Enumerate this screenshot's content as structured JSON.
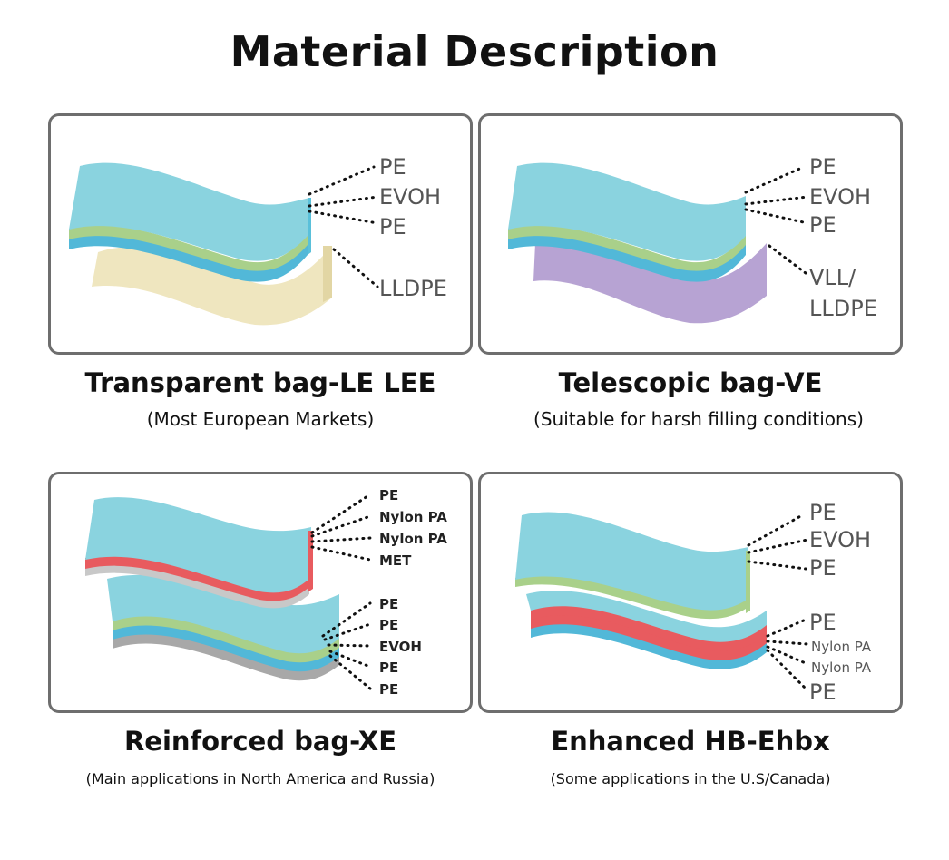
{
  "title": "Material  Description",
  "colors": {
    "cyan": "#8ad3df",
    "cyan_edge": "#52b8d8",
    "green": "#a9d08a",
    "cream": "#efe6bf",
    "purple": "#b7a3d3",
    "red": "#e85b5f",
    "gray": "#bfbfbf",
    "border": "#6e6e6e"
  },
  "panels": [
    {
      "name": "Transparent bag-LE LEE",
      "subtitle": "(Most European Markets)",
      "layers": [
        "PE",
        "EVOH",
        "PE",
        "LLDPE"
      ]
    },
    {
      "name": "Telescopic bag-VE",
      "subtitle": "(Suitable for harsh filling conditions)",
      "layers": [
        "PE",
        "EVOH",
        "PE",
        "VLL/",
        "LLDPE"
      ]
    },
    {
      "name": "Reinforced bag-XE",
      "subtitle": "(Main applications in North America and Russia)",
      "layers_top": [
        "PE",
        "Nylon PA",
        "Nylon PA",
        "MET"
      ],
      "layers_bottom": [
        "PE",
        "PE",
        "EVOH",
        "PE",
        "PE"
      ]
    },
    {
      "name": "Enhanced HB-Ehbx",
      "subtitle": "(Some applications in the U.S/Canada)",
      "layers_top": [
        "PE",
        "EVOH",
        "PE"
      ],
      "layers_bottom": [
        "PE",
        "Nylon PA",
        "Nylon PA",
        "PE"
      ]
    }
  ]
}
